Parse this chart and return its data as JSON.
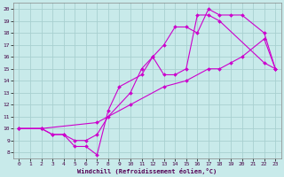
{
  "xlabel": "Windchill (Refroidissement éolien,°C)",
  "xlim": [
    -0.5,
    23.5
  ],
  "ylim": [
    7.5,
    20.5
  ],
  "xticks": [
    0,
    1,
    2,
    3,
    4,
    5,
    6,
    7,
    8,
    9,
    10,
    11,
    12,
    13,
    14,
    15,
    16,
    17,
    18,
    19,
    20,
    21,
    22,
    23
  ],
  "yticks": [
    8,
    9,
    10,
    11,
    12,
    13,
    14,
    15,
    16,
    17,
    18,
    19,
    20
  ],
  "background_color": "#c8eaea",
  "line_color": "#cc00cc",
  "grid_color": "#a8d0d0",
  "line1_x": [
    0,
    2,
    3,
    4,
    5,
    6,
    7,
    8,
    9,
    11,
    12,
    13,
    14,
    15,
    16,
    17,
    18,
    22,
    23
  ],
  "line1_y": [
    10,
    10,
    9.5,
    9.5,
    8.5,
    8.5,
    7.8,
    11.5,
    13.5,
    14.5,
    16,
    14.5,
    14.5,
    15,
    19.5,
    19.5,
    19,
    15.5,
    15
  ],
  "line2_x": [
    0,
    2,
    3,
    4,
    5,
    6,
    7,
    8,
    10,
    11,
    12,
    13,
    14,
    15,
    16,
    17,
    18,
    19,
    20,
    22,
    23
  ],
  "line2_y": [
    10,
    10,
    9.5,
    9.5,
    9.0,
    9.0,
    9.5,
    11.0,
    13.0,
    15.0,
    16.0,
    17.0,
    18.5,
    18.5,
    18.0,
    20.0,
    19.5,
    19.5,
    19.5,
    18.0,
    15.0
  ],
  "line3_x": [
    0,
    2,
    7,
    10,
    13,
    15,
    17,
    18,
    19,
    20,
    22,
    23
  ],
  "line3_y": [
    10,
    10,
    10.5,
    12.0,
    13.5,
    14.0,
    15.0,
    15.0,
    15.5,
    16.0,
    17.5,
    15.0
  ]
}
